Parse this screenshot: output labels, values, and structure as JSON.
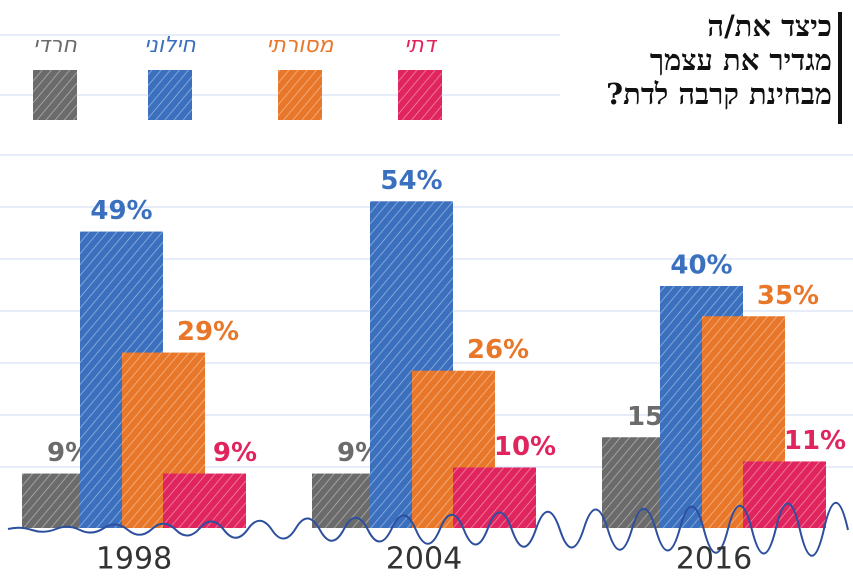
{
  "chart_data": {
    "type": "bar",
    "title": [
      "כיצד את/ה",
      "מגדיר את עצמך",
      "מבחינת קרבה לדת?"
    ],
    "categories": [
      "1998",
      "2004",
      "2016"
    ],
    "series": [
      {
        "name": "חרדי",
        "color": "#6b6b6b",
        "values": [
          9,
          9,
          15
        ],
        "value_labels": [
          "9%",
          "9%",
          "15%"
        ]
      },
      {
        "name": "חילוני",
        "color": "#3b70bf",
        "values": [
          49,
          54,
          40
        ],
        "value_labels": [
          "49%",
          "54%",
          "40%"
        ]
      },
      {
        "name": "מסורתי",
        "color": "#e8772a",
        "values": [
          29,
          26,
          35
        ],
        "value_labels": [
          "29%",
          "26%",
          "35%"
        ]
      },
      {
        "name": "דתי",
        "color": "#e0245e",
        "values": [
          9,
          10,
          11
        ],
        "value_labels": [
          "9%",
          "10%",
          "11%"
        ]
      }
    ]
  }
}
